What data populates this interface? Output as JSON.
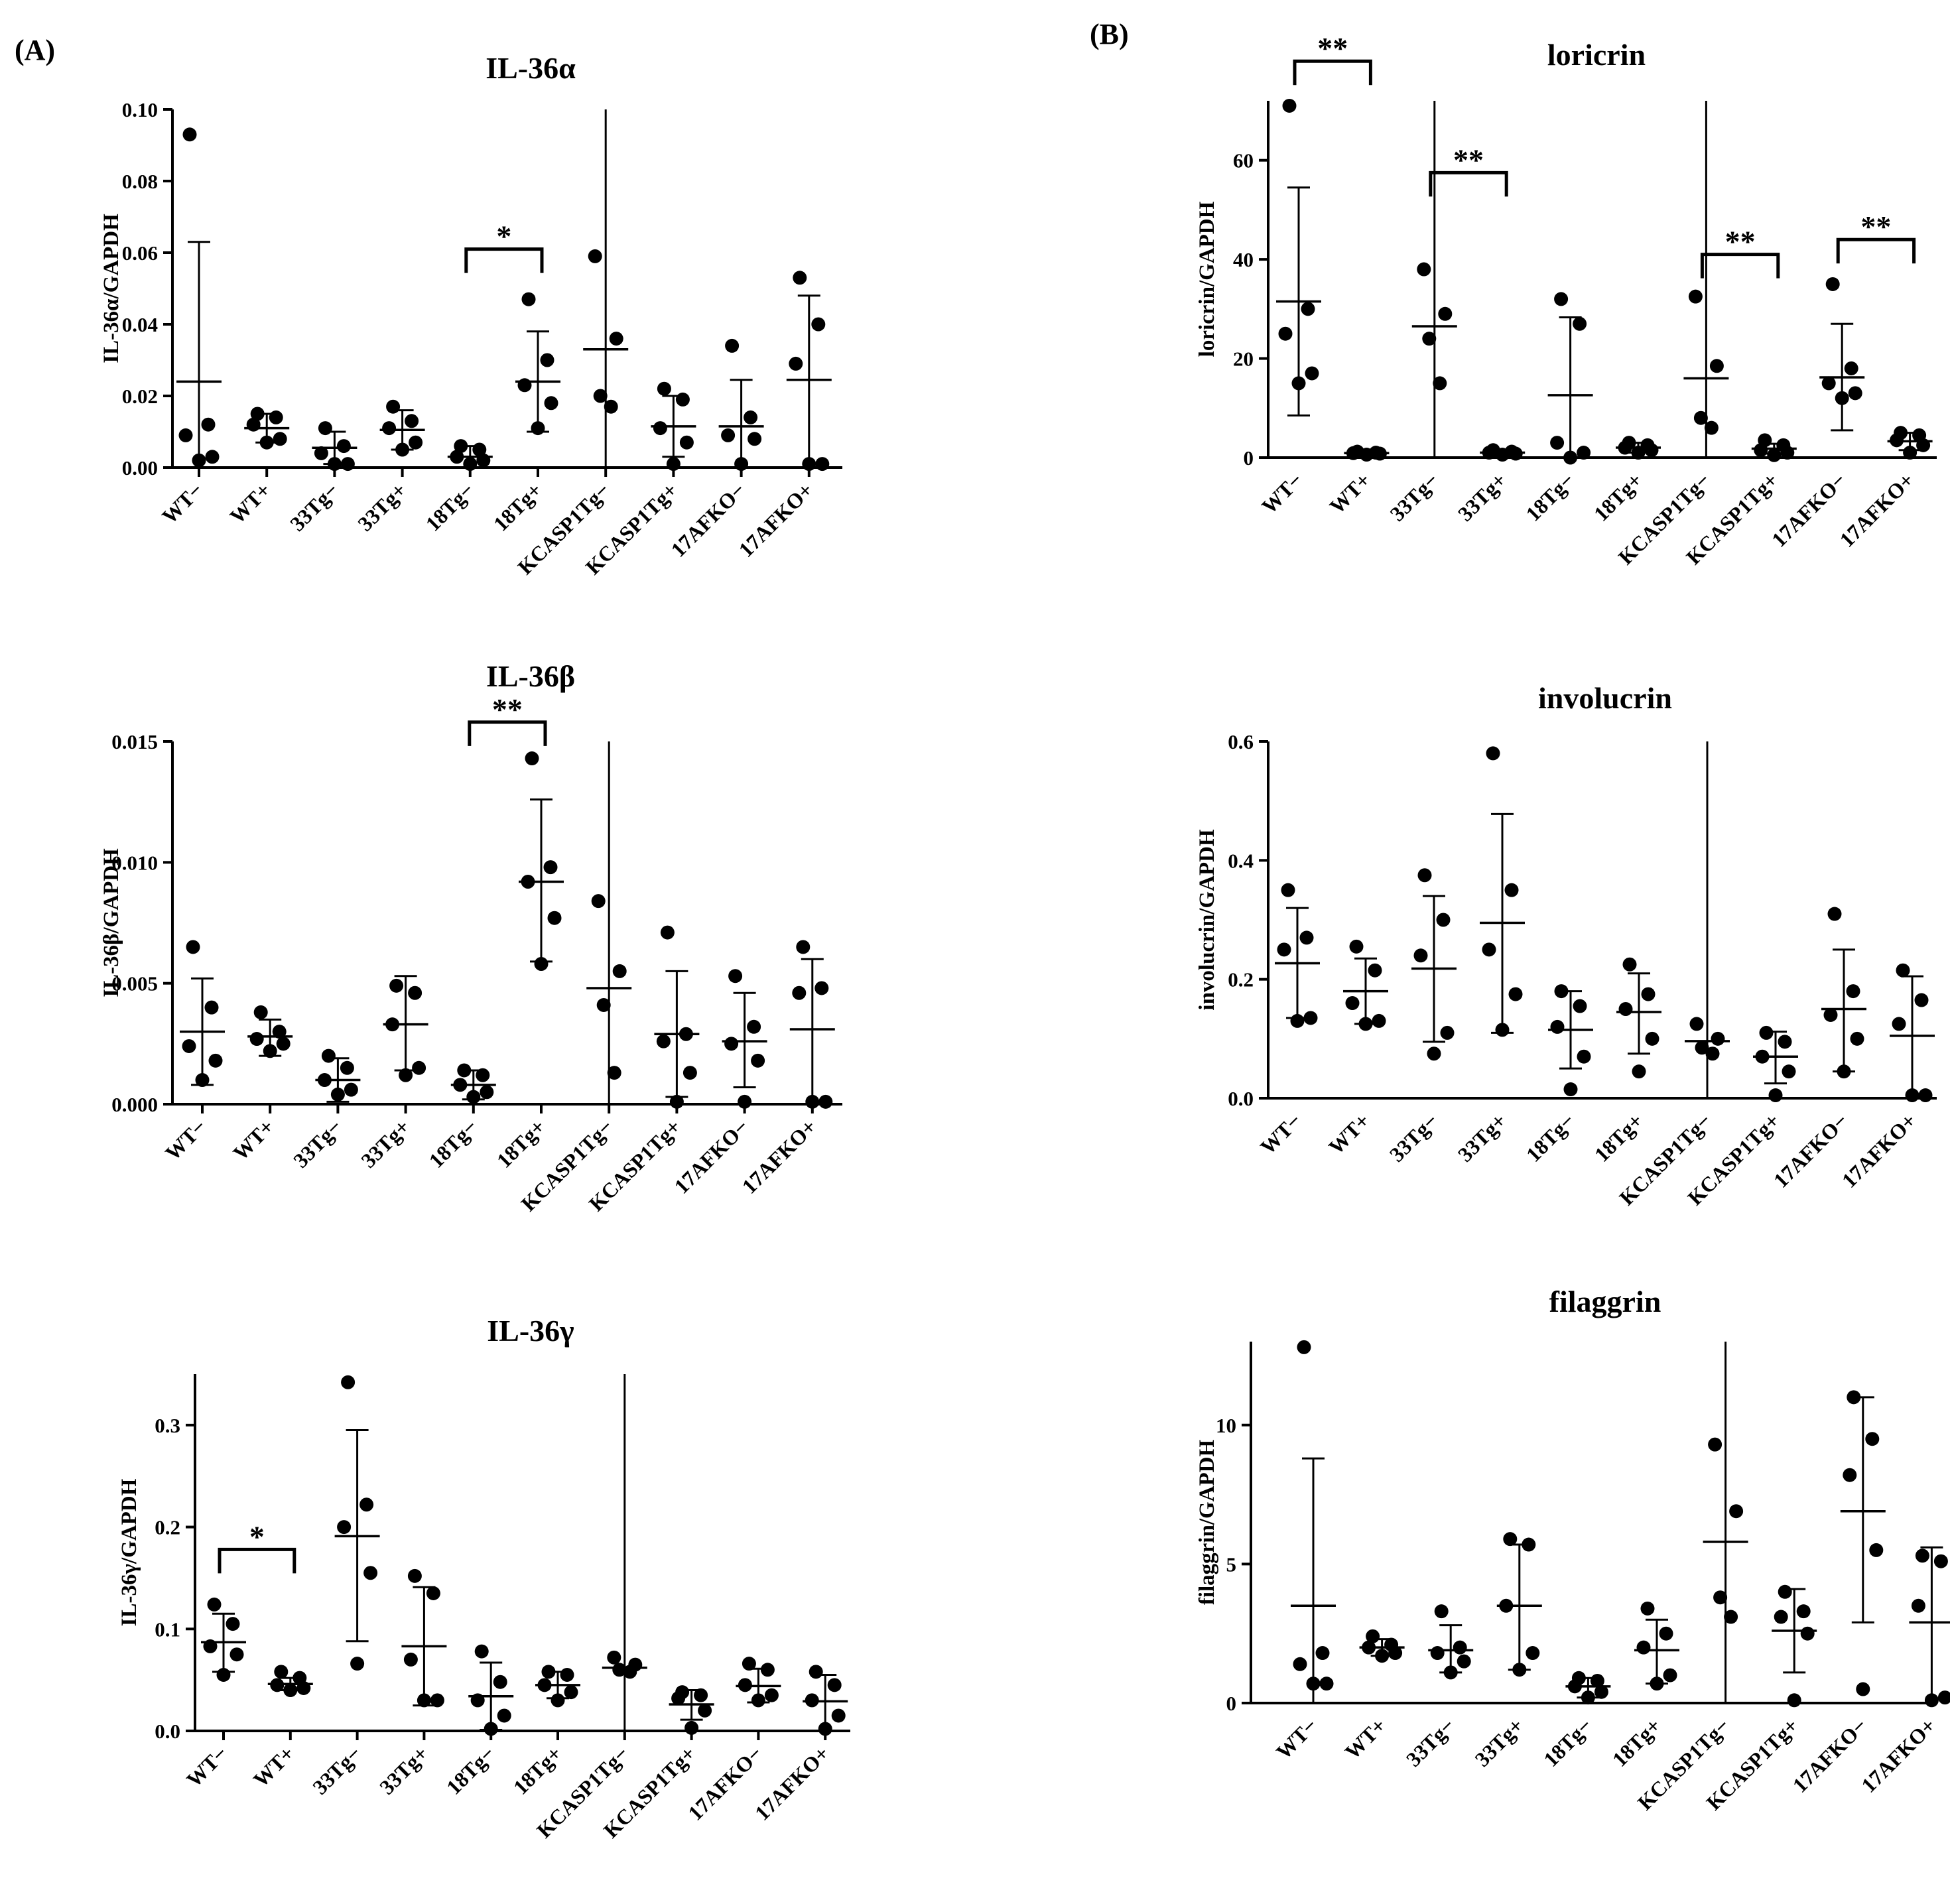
{
  "figure": {
    "panels": [
      {
        "label": "(A)",
        "side": "left"
      },
      {
        "label": "(B)",
        "side": "right"
      }
    ]
  },
  "chart_data": [
    {
      "id": "il36a",
      "panel": "(A)",
      "type": "scatter",
      "title": "IL-36α",
      "ylabel": "IL-36α/GAPDH",
      "xlabel": "",
      "ylim": [
        0,
        0.1
      ],
      "yticks": [
        0.0,
        0.02,
        0.04,
        0.06,
        0.08,
        0.1
      ],
      "ytick_labels": [
        "0.00",
        "0.02",
        "0.04",
        "0.06",
        "0.08",
        "0.10"
      ],
      "categories": [
        "WT−",
        "WT+",
        "33Tg−",
        "33Tg+",
        "18Tg−",
        "18Tg+",
        "KCASP1Tg−",
        "KCASP1Tg+",
        "17AFKO−",
        "17AFKO+"
      ],
      "groups": [
        {
          "points": [
            0.093,
            0.012,
            0.009,
            0.003,
            0.002
          ],
          "mean": 0.024,
          "err": [
            0.0,
            0.063
          ]
        },
        {
          "points": [
            0.015,
            0.014,
            0.012,
            0.008,
            0.007
          ],
          "mean": 0.011,
          "err": [
            0.007,
            0.015
          ]
        },
        {
          "points": [
            0.011,
            0.006,
            0.004,
            0.001,
            0.001
          ],
          "mean": 0.0055,
          "err": [
            0.001,
            0.01
          ]
        },
        {
          "points": [
            0.017,
            0.013,
            0.011,
            0.007,
            0.005
          ],
          "mean": 0.0105,
          "err": [
            0.005,
            0.016
          ]
        },
        {
          "points": [
            0.006,
            0.005,
            0.003,
            0.002,
            0.001
          ],
          "mean": 0.003,
          "err": [
            0.0,
            0.006
          ]
        },
        {
          "points": [
            0.047,
            0.03,
            0.023,
            0.018,
            0.011
          ],
          "mean": 0.024,
          "err": [
            0.01,
            0.038
          ]
        },
        {
          "points": [
            0.059,
            0.036,
            0.02,
            0.017
          ],
          "mean": 0.033,
          "err": [
            0.0,
            0.1
          ]
        },
        {
          "points": [
            0.022,
            0.019,
            0.011,
            0.007,
            0.001
          ],
          "mean": 0.0115,
          "err": [
            0.003,
            0.02
          ]
        },
        {
          "points": [
            0.034,
            0.014,
            0.009,
            0.008,
            0.001
          ],
          "mean": 0.0115,
          "err": [
            0.0,
            0.0245
          ]
        },
        {
          "points": [
            0.053,
            0.04,
            0.029,
            0.001,
            0.001
          ],
          "mean": 0.0245,
          "err": [
            0.0,
            0.048
          ]
        }
      ],
      "significance": [
        {
          "label": "*",
          "from": "18Tg−",
          "to": "18Tg+",
          "y": 0.061
        }
      ]
    },
    {
      "id": "il36b",
      "panel": "(A)",
      "type": "scatter",
      "title": "IL-36β",
      "ylabel": "IL-36β/GAPDH",
      "xlabel": "",
      "ylim": [
        0,
        0.015
      ],
      "yticks": [
        0.0,
        0.005,
        0.01,
        0.015
      ],
      "ytick_labels": [
        "0.000",
        "0.005",
        "0.010",
        "0.015"
      ],
      "categories": [
        "WT−",
        "WT+",
        "33Tg−",
        "33Tg+",
        "18Tg−",
        "18Tg+",
        "KCASP1Tg−",
        "KCASP1Tg+",
        "17AFKO−",
        "17AFKO+"
      ],
      "groups": [
        {
          "points": [
            0.0065,
            0.004,
            0.0024,
            0.0018,
            0.001
          ],
          "mean": 0.003,
          "err": [
            0.0008,
            0.0052
          ]
        },
        {
          "points": [
            0.0038,
            0.003,
            0.0027,
            0.0025,
            0.0022
          ],
          "mean": 0.0028,
          "err": [
            0.002,
            0.0035
          ]
        },
        {
          "points": [
            0.002,
            0.0015,
            0.001,
            0.0006,
            0.0004
          ],
          "mean": 0.001,
          "err": [
            0.0001,
            0.0019
          ]
        },
        {
          "points": [
            0.0049,
            0.0046,
            0.0033,
            0.0015,
            0.0012
          ],
          "mean": 0.0033,
          "err": [
            0.0014,
            0.0053
          ]
        },
        {
          "points": [
            0.0014,
            0.0012,
            0.0008,
            0.0005,
            0.0003
          ],
          "mean": 0.0008,
          "err": [
            0.0002,
            0.0014
          ]
        },
        {
          "points": [
            0.0143,
            0.0098,
            0.0092,
            0.0077,
            0.0058
          ],
          "mean": 0.0092,
          "err": [
            0.0059,
            0.0126
          ]
        },
        {
          "points": [
            0.0084,
            0.0055,
            0.0041,
            0.0013
          ],
          "mean": 0.0048,
          "err": [
            0.0,
            0.015
          ]
        },
        {
          "points": [
            0.0071,
            0.0029,
            0.0026,
            0.0013,
            0.0001
          ],
          "mean": 0.0029,
          "err": [
            0.0003,
            0.0055
          ]
        },
        {
          "points": [
            0.0053,
            0.0032,
            0.0025,
            0.0018,
            0.0001
          ],
          "mean": 0.0026,
          "err": [
            0.0007,
            0.0046
          ]
        },
        {
          "points": [
            0.0065,
            0.0048,
            0.0046,
            0.0001,
            0.0001
          ],
          "mean": 0.0031,
          "err": [
            0.0,
            0.006
          ]
        }
      ],
      "significance": [
        {
          "label": "**",
          "from": "18Tg−",
          "to": "18Tg+",
          "y": 0.0158
        }
      ]
    },
    {
      "id": "il36g",
      "panel": "(A)",
      "type": "scatter",
      "title": "IL-36γ",
      "ylabel": "IL-36γ/GAPDH",
      "xlabel": "",
      "ylim": [
        0,
        0.35
      ],
      "yticks": [
        0.0,
        0.1,
        0.2,
        0.3
      ],
      "ytick_labels": [
        "0.0",
        "0.1",
        "0.2",
        "0.3"
      ],
      "categories": [
        "WT−",
        "WT+",
        "33Tg−",
        "33Tg+",
        "18Tg−",
        "18Tg+",
        "KCASP1Tg−",
        "KCASP1Tg+",
        "17AFKO−",
        "17AFKO+"
      ],
      "groups": [
        {
          "points": [
            0.124,
            0.105,
            0.083,
            0.075,
            0.055
          ],
          "mean": 0.087,
          "err": [
            0.058,
            0.115
          ]
        },
        {
          "points": [
            0.058,
            0.052,
            0.045,
            0.042,
            0.04
          ],
          "mean": 0.046,
          "err": [
            0.04,
            0.052
          ]
        },
        {
          "points": [
            0.342,
            0.222,
            0.2,
            0.155,
            0.066
          ],
          "mean": 0.191,
          "err": [
            0.088,
            0.295
          ]
        },
        {
          "points": [
            0.152,
            0.135,
            0.07,
            0.03,
            0.03
          ],
          "mean": 0.083,
          "err": [
            0.025,
            0.141
          ]
        },
        {
          "points": [
            0.078,
            0.048,
            0.03,
            0.015,
            0.002
          ],
          "mean": 0.034,
          "err": [
            0.001,
            0.067
          ]
        },
        {
          "points": [
            0.058,
            0.055,
            0.045,
            0.038,
            0.03
          ],
          "mean": 0.045,
          "err": [
            0.032,
            0.058
          ]
        },
        {
          "points": [
            0.072,
            0.065,
            0.06,
            0.058
          ],
          "mean": 0.062,
          "err": [
            0.0,
            0.35
          ]
        },
        {
          "points": [
            0.038,
            0.035,
            0.032,
            0.02,
            0.003
          ],
          "mean": 0.026,
          "err": [
            0.011,
            0.04
          ]
        },
        {
          "points": [
            0.066,
            0.06,
            0.045,
            0.035,
            0.03
          ],
          "mean": 0.044,
          "err": [
            0.028,
            0.061
          ]
        },
        {
          "points": [
            0.058,
            0.045,
            0.03,
            0.015,
            0.002
          ],
          "mean": 0.029,
          "err": [
            0.0,
            0.055
          ]
        }
      ],
      "significance": [
        {
          "label": "*",
          "from": "WT−",
          "to": "WT+",
          "y": 0.178
        }
      ]
    },
    {
      "id": "loricrin",
      "panel": "(B)",
      "type": "scatter",
      "title": "loricrin",
      "ylabel": "loricrin/GAPDH",
      "xlabel": "",
      "ylim": [
        0,
        72
      ],
      "yticks": [
        0,
        20,
        40,
        60
      ],
      "ytick_labels": [
        "0",
        "20",
        "40",
        "60"
      ],
      "categories": [
        "WT−",
        "WT+",
        "33Tg−",
        "33Tg+",
        "18Tg−",
        "18Tg+",
        "KCASP1Tg−",
        "KCASP1Tg+",
        "17AFKO−",
        "17AFKO+"
      ],
      "groups": [
        {
          "points": [
            71,
            30,
            25,
            17,
            15
          ],
          "mean": 31.5,
          "err": [
            8.5,
            54.5
          ]
        },
        {
          "points": [
            1.2,
            1.0,
            0.9,
            0.8,
            0.6
          ],
          "mean": 0.9,
          "err": [
            0.6,
            1.2
          ]
        },
        {
          "points": [
            38,
            29,
            24,
            15
          ],
          "mean": 26.5,
          "err": [
            0,
            72
          ]
        },
        {
          "points": [
            1.5,
            1.2,
            1.0,
            0.8,
            0.6
          ],
          "mean": 1.0,
          "err": [
            0.6,
            1.4
          ]
        },
        {
          "points": [
            32,
            27,
            3,
            1,
            0
          ],
          "mean": 12.6,
          "err": [
            0,
            28.3
          ]
        },
        {
          "points": [
            3,
            2.5,
            2,
            1.5,
            1
          ],
          "mean": 2.0,
          "err": [
            1.0,
            3.0
          ]
        },
        {
          "points": [
            32.5,
            18.5,
            8,
            6
          ],
          "mean": 16,
          "err": [
            0,
            72
          ]
        },
        {
          "points": [
            3.5,
            2.5,
            1.5,
            1,
            0.5
          ],
          "mean": 1.8,
          "err": [
            0.8,
            2.8
          ]
        },
        {
          "points": [
            35,
            18,
            15,
            13,
            12
          ],
          "mean": 16.2,
          "err": [
            5.5,
            27
          ]
        },
        {
          "points": [
            5,
            4.5,
            3.5,
            2.5,
            1
          ],
          "mean": 3.3,
          "err": [
            1.5,
            5
          ]
        }
      ],
      "significance": [
        {
          "label": "**",
          "from": "WT−",
          "to": "WT+",
          "y": 80
        },
        {
          "label": "**",
          "from": "33Tg−",
          "to": "33Tg+",
          "y": 57.5
        },
        {
          "label": "**",
          "from": "KCASP1Tg−",
          "to": "KCASP1Tg+",
          "y": 41
        },
        {
          "label": "**",
          "from": "17AFKO−",
          "to": "17AFKO+",
          "y": 44
        }
      ]
    },
    {
      "id": "involucrin",
      "panel": "(B)",
      "type": "scatter",
      "title": "involucrin",
      "ylabel": "involucrin/GAPDH",
      "xlabel": "",
      "ylim": [
        0,
        0.6
      ],
      "yticks": [
        0.0,
        0.2,
        0.4,
        0.6
      ],
      "ytick_labels": [
        "0.0",
        "0.2",
        "0.4",
        "0.6"
      ],
      "categories": [
        "WT−",
        "WT+",
        "33Tg−",
        "33Tg+",
        "18Tg−",
        "18Tg+",
        "KCASP1Tg−",
        "KCASP1Tg+",
        "17AFKO−",
        "17AFKO+"
      ],
      "groups": [
        {
          "points": [
            0.35,
            0.27,
            0.25,
            0.135,
            0.13
          ],
          "mean": 0.227,
          "err": [
            0.135,
            0.32
          ]
        },
        {
          "points": [
            0.255,
            0.215,
            0.16,
            0.13,
            0.125
          ],
          "mean": 0.18,
          "err": [
            0.125,
            0.235
          ]
        },
        {
          "points": [
            0.375,
            0.3,
            0.24,
            0.11,
            0.075
          ],
          "mean": 0.218,
          "err": [
            0.095,
            0.34
          ]
        },
        {
          "points": [
            0.58,
            0.35,
            0.25,
            0.175,
            0.115
          ],
          "mean": 0.295,
          "err": [
            0.11,
            0.478
          ]
        },
        {
          "points": [
            0.18,
            0.155,
            0.12,
            0.07,
            0.015
          ],
          "mean": 0.115,
          "err": [
            0.05,
            0.18
          ]
        },
        {
          "points": [
            0.225,
            0.175,
            0.15,
            0.1,
            0.045
          ],
          "mean": 0.145,
          "err": [
            0.075,
            0.21
          ]
        },
        {
          "points": [
            0.125,
            0.1,
            0.085,
            0.075
          ],
          "mean": 0.096,
          "err": [
            0.0,
            0.6
          ]
        },
        {
          "points": [
            0.11,
            0.095,
            0.07,
            0.045,
            0.005
          ],
          "mean": 0.07,
          "err": [
            0.025,
            0.112
          ]
        },
        {
          "points": [
            0.31,
            0.18,
            0.14,
            0.1,
            0.045
          ],
          "mean": 0.15,
          "err": [
            0.045,
            0.25
          ]
        },
        {
          "points": [
            0.215,
            0.165,
            0.125,
            0.005,
            0.005
          ],
          "mean": 0.105,
          "err": [
            0.0,
            0.205
          ]
        }
      ],
      "significance": []
    },
    {
      "id": "filaggrin",
      "panel": "(B)",
      "type": "scatter",
      "title": "filaggrin",
      "ylabel": "filaggrin/GAPDH",
      "xlabel": "",
      "ylim": [
        0,
        13
      ],
      "yticks": [
        0,
        5,
        10
      ],
      "ytick_labels": [
        "0",
        "5",
        "10"
      ],
      "categories": [
        "WT−",
        "WT+",
        "33Tg−",
        "33Tg+",
        "18Tg−",
        "18Tg+",
        "KCASP1Tg−",
        "KCASP1Tg+",
        "17AFKO−",
        "17AFKO+"
      ],
      "groups": [
        {
          "points": [
            12.8,
            1.8,
            1.4,
            0.7,
            0.7
          ],
          "mean": 3.5,
          "err": [
            0,
            8.8
          ]
        },
        {
          "points": [
            2.4,
            2.1,
            2.0,
            1.8,
            1.7
          ],
          "mean": 2.0,
          "err": [
            1.7,
            2.3
          ]
        },
        {
          "points": [
            3.3,
            2.0,
            1.8,
            1.5,
            1.1
          ],
          "mean": 1.9,
          "err": [
            1.1,
            2.8
          ]
        },
        {
          "points": [
            5.9,
            5.7,
            3.5,
            1.8,
            1.2
          ],
          "mean": 3.5,
          "err": [
            1.2,
            5.7
          ]
        },
        {
          "points": [
            0.9,
            0.8,
            0.6,
            0.4,
            0.2
          ],
          "mean": 0.6,
          "err": [
            0.2,
            0.9
          ]
        },
        {
          "points": [
            3.4,
            2.5,
            2.0,
            1.0,
            0.7
          ],
          "mean": 1.9,
          "err": [
            0.7,
            3.0
          ]
        },
        {
          "points": [
            9.3,
            6.9,
            3.8,
            3.1
          ],
          "mean": 5.8,
          "err": [
            0,
            13
          ]
        },
        {
          "points": [
            4.0,
            3.3,
            3.1,
            2.5,
            0.1
          ],
          "mean": 2.6,
          "err": [
            1.1,
            4.1
          ]
        },
        {
          "points": [
            11.0,
            9.5,
            8.2,
            5.5,
            0.5
          ],
          "mean": 6.9,
          "err": [
            2.9,
            11.0
          ]
        },
        {
          "points": [
            5.3,
            5.1,
            3.5,
            0.2,
            0.1
          ],
          "mean": 2.9,
          "err": [
            0,
            5.6
          ]
        }
      ],
      "significance": []
    }
  ]
}
